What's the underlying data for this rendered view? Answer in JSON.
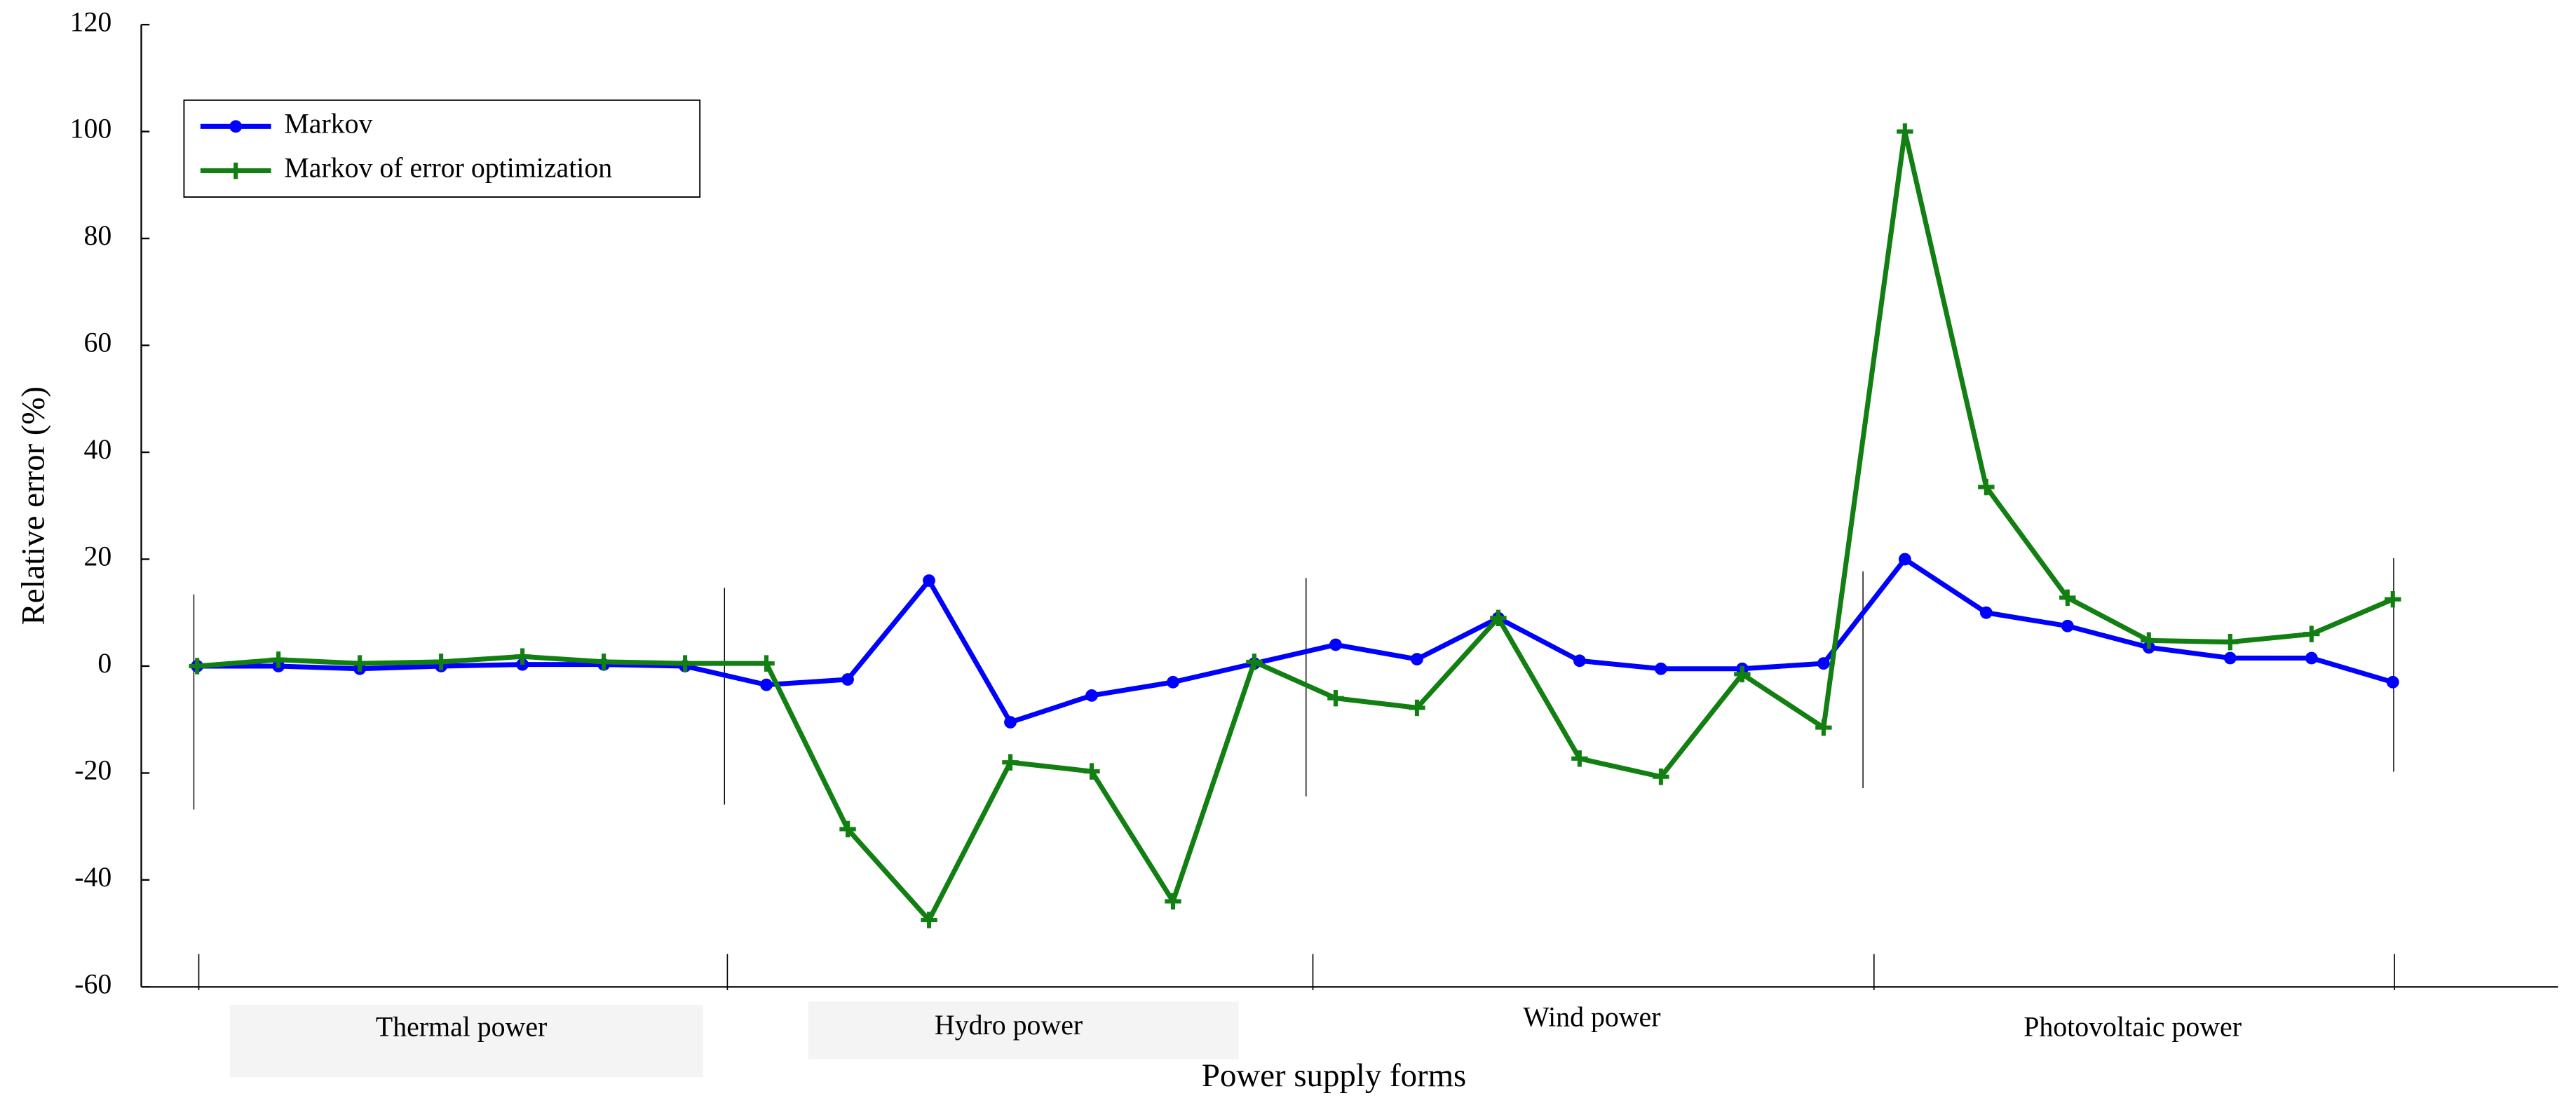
{
  "chart_data": {
    "type": "line",
    "xlabel": "Power supply forms",
    "ylabel": "Relative error (%)",
    "categories": [
      null,
      null,
      null,
      null,
      null,
      null,
      null,
      null,
      null,
      null,
      null,
      null,
      null,
      null,
      null,
      null,
      null,
      null,
      null,
      null,
      null,
      null,
      null,
      null,
      null,
      null,
      null,
      null
    ],
    "groups": [
      "Thermal power",
      "Hydro power",
      "Wind power",
      "Photovoltaic power"
    ],
    "series": [
      {
        "name": "Markov",
        "color": "#0000ff",
        "marker": "circle",
        "values": [
          0,
          0,
          -0.5,
          0,
          0.3,
          0.3,
          0,
          -3.5,
          -2.5,
          16,
          -10.5,
          -5.5,
          -3,
          0.5,
          4,
          1.3,
          9,
          1,
          -0.5,
          -0.5,
          0.5,
          20,
          10,
          7.5,
          3.5,
          1.5,
          1.5,
          -3
        ]
      },
      {
        "name": "Markov of error optimization",
        "color": "#127f12",
        "marker": "plus",
        "values": [
          0,
          1.2,
          0.5,
          0.8,
          1.8,
          0.8,
          0.5,
          0.5,
          -30.5,
          -47.5,
          -18,
          -19.7,
          -44,
          0.8,
          -6,
          -7.8,
          9,
          -17.3,
          -20.7,
          -1.5,
          -11.5,
          100,
          33.5,
          12.8,
          4.8,
          4.5,
          6,
          12.5
        ]
      }
    ],
    "ylim": [
      -60,
      120
    ],
    "yticks": [
      -60,
      -40,
      -20,
      0,
      20,
      40,
      60,
      80,
      100,
      120
    ],
    "legend": "upper left"
  }
}
